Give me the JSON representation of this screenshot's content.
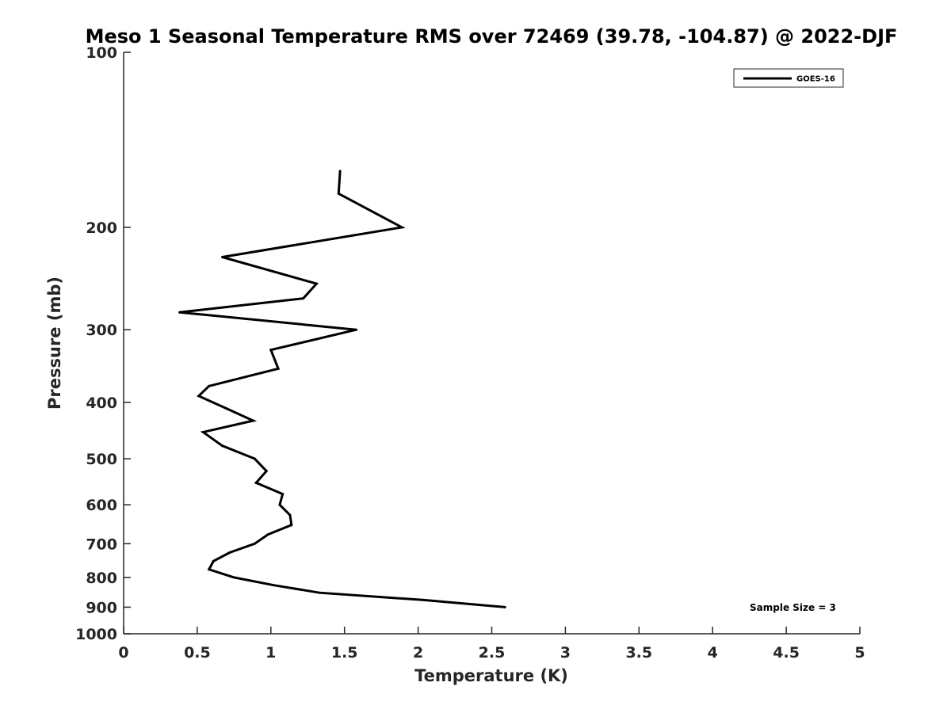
{
  "chart_data": {
    "type": "line",
    "title": "Meso 1 Seasonal Temperature RMS over 72469 (39.78, -104.87) @ 2022-DJF",
    "xlabel": "Temperature (K)",
    "ylabel": "Pressure (mb)",
    "xlim": [
      0,
      5
    ],
    "ylim": [
      100,
      1000
    ],
    "y_scale": "log",
    "y_reversed": true,
    "grid": false,
    "legend_position": "top-right",
    "x_ticks": [
      "0",
      "0.5",
      "1",
      "1.5",
      "2",
      "2.5",
      "3",
      "3.5",
      "4",
      "4.5",
      "5"
    ],
    "y_ticks": [
      "100",
      "200",
      "300",
      "400",
      "500",
      "600",
      "700",
      "800",
      "900",
      "1000"
    ],
    "annotation": "Sample Size = 3",
    "line_color": "#000000",
    "series": [
      {
        "name": "GOES-16",
        "points": [
          {
            "x": 1.47,
            "y": 160
          },
          {
            "x": 1.46,
            "y": 175
          },
          {
            "x": 1.89,
            "y": 200
          },
          {
            "x": 0.67,
            "y": 225
          },
          {
            "x": 1.31,
            "y": 250
          },
          {
            "x": 1.22,
            "y": 265
          },
          {
            "x": 0.38,
            "y": 280
          },
          {
            "x": 1.58,
            "y": 300
          },
          {
            "x": 1.0,
            "y": 325
          },
          {
            "x": 1.05,
            "y": 350
          },
          {
            "x": 0.58,
            "y": 375
          },
          {
            "x": 0.51,
            "y": 390
          },
          {
            "x": 0.7,
            "y": 410
          },
          {
            "x": 0.88,
            "y": 430
          },
          {
            "x": 0.54,
            "y": 450
          },
          {
            "x": 0.67,
            "y": 475
          },
          {
            "x": 0.89,
            "y": 500
          },
          {
            "x": 0.97,
            "y": 525
          },
          {
            "x": 0.9,
            "y": 550
          },
          {
            "x": 1.08,
            "y": 575
          },
          {
            "x": 1.06,
            "y": 600
          },
          {
            "x": 1.13,
            "y": 625
          },
          {
            "x": 1.14,
            "y": 650
          },
          {
            "x": 0.98,
            "y": 675
          },
          {
            "x": 0.89,
            "y": 700
          },
          {
            "x": 0.72,
            "y": 725
          },
          {
            "x": 0.61,
            "y": 750
          },
          {
            "x": 0.58,
            "y": 775
          },
          {
            "x": 0.75,
            "y": 800
          },
          {
            "x": 1.02,
            "y": 825
          },
          {
            "x": 1.33,
            "y": 850
          },
          {
            "x": 2.04,
            "y": 875
          },
          {
            "x": 2.59,
            "y": 900
          }
        ]
      }
    ]
  }
}
